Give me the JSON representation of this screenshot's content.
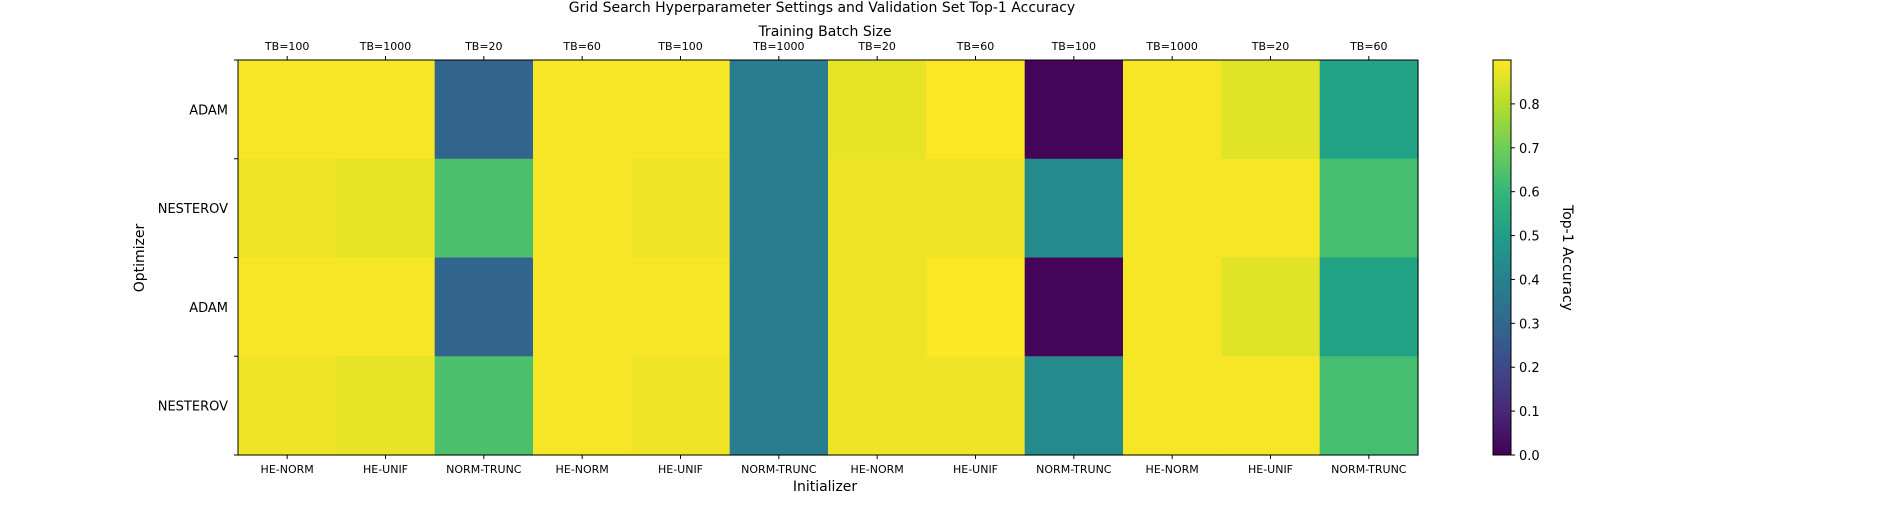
{
  "chart_data": {
    "type": "heatmap",
    "title": "Grid Search Hyperparameter Settings and Validation Set Top-1 Accuracy",
    "top_xlabel": "Training Batch Size",
    "xlabel": "Initializer",
    "ylabel": "Optimizer",
    "colorbar_label": "Top-1 Accuracy",
    "colormap": "viridis",
    "vmin": 0.0,
    "vmax": 0.9,
    "colorbar_ticks": [
      "0.0",
      "0.1",
      "0.2",
      "0.3",
      "0.4",
      "0.5",
      "0.6",
      "0.7",
      "0.8"
    ],
    "top_tick_labels": [
      "TB=100",
      "TB=1000",
      "TB=20",
      "TB=60",
      "TB=100",
      "TB=1000",
      "TB=20",
      "TB=60",
      "TB=100",
      "TB=1000",
      "TB=20",
      "TB=60"
    ],
    "bottom_tick_labels": [
      "HE-NORM",
      "HE-UNIF",
      "NORM-TRUNC",
      "HE-NORM",
      "HE-UNIF",
      "NORM-TRUNC",
      "HE-NORM",
      "HE-UNIF",
      "NORM-TRUNC",
      "HE-NORM",
      "HE-UNIF",
      "NORM-TRUNC"
    ],
    "y_tick_labels": [
      "ADAM",
      "NESTEROV",
      "ADAM",
      "NESTEROV"
    ],
    "values": [
      [
        0.89,
        0.89,
        0.29,
        0.89,
        0.89,
        0.38,
        0.87,
        0.9,
        0.01,
        0.89,
        0.86,
        0.52
      ],
      [
        0.88,
        0.87,
        0.64,
        0.89,
        0.88,
        0.38,
        0.88,
        0.88,
        0.43,
        0.89,
        0.89,
        0.63
      ],
      [
        0.89,
        0.89,
        0.29,
        0.89,
        0.89,
        0.38,
        0.88,
        0.9,
        0.01,
        0.89,
        0.86,
        0.52
      ],
      [
        0.88,
        0.87,
        0.64,
        0.89,
        0.88,
        0.38,
        0.88,
        0.88,
        0.43,
        0.89,
        0.89,
        0.63
      ]
    ]
  }
}
